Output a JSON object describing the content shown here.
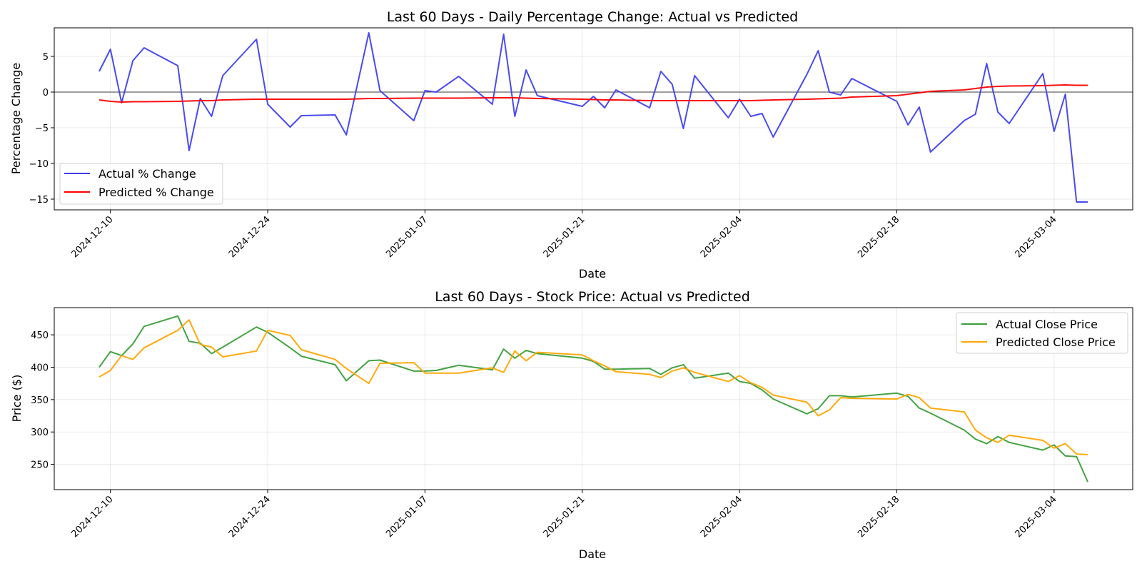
{
  "chart_data": [
    {
      "type": "line",
      "title": "Last 60 Days - Daily Percentage Change: Actual vs Predicted",
      "xlabel": "Date",
      "ylabel": "Percentage Change",
      "xlim": [
        "2024-12-05",
        "2025-03-11"
      ],
      "ylim": [
        -16.5,
        9.0
      ],
      "xticks": [
        "2024-12-10",
        "2024-12-24",
        "2025-01-07",
        "2025-01-21",
        "2025-02-04",
        "2025-02-18",
        "2025-03-04"
      ],
      "yticks": [
        -15,
        -10,
        -5,
        0,
        5
      ],
      "yticklabels": [
        "−15",
        "−10",
        "−5",
        "0",
        "5"
      ],
      "zero_line": true,
      "grid": true,
      "legend": "lower-left",
      "x": [
        "2024-12-09",
        "2024-12-10",
        "2024-12-11",
        "2024-12-12",
        "2024-12-13",
        "2024-12-16",
        "2024-12-17",
        "2024-12-18",
        "2024-12-19",
        "2024-12-20",
        "2024-12-23",
        "2024-12-24",
        "2024-12-26",
        "2024-12-27",
        "2024-12-30",
        "2024-12-31",
        "2025-01-02",
        "2025-01-03",
        "2025-01-06",
        "2025-01-07",
        "2025-01-08",
        "2025-01-10",
        "2025-01-13",
        "2025-01-14",
        "2025-01-15",
        "2025-01-16",
        "2025-01-17",
        "2025-01-21",
        "2025-01-22",
        "2025-01-23",
        "2025-01-24",
        "2025-01-27",
        "2025-01-28",
        "2025-01-29",
        "2025-01-30",
        "2025-01-31",
        "2025-02-03",
        "2025-02-04",
        "2025-02-05",
        "2025-02-06",
        "2025-02-07",
        "2025-02-10",
        "2025-02-11",
        "2025-02-12",
        "2025-02-13",
        "2025-02-14",
        "2025-02-18",
        "2025-02-19",
        "2025-02-20",
        "2025-02-21",
        "2025-02-24",
        "2025-02-25",
        "2025-02-26",
        "2025-02-27",
        "2025-02-28",
        "2025-03-03",
        "2025-03-04",
        "2025-03-05",
        "2025-03-06",
        "2025-03-07"
      ],
      "series": [
        {
          "name": "Actual % Change",
          "color": "#4040f0",
          "values": [
            2.9,
            6.0,
            -1.5,
            4.4,
            6.2,
            3.7,
            -8.2,
            -0.9,
            -3.4,
            2.3,
            7.4,
            -1.7,
            -4.9,
            -3.3,
            -3.2,
            -6.0,
            8.3,
            0.2,
            -4.0,
            0.2,
            0.0,
            2.2,
            -1.7,
            8.1,
            -3.4,
            3.1,
            -0.5,
            -2.0,
            -0.6,
            -2.2,
            0.3,
            -2.2,
            2.9,
            1.1,
            -5.1,
            2.3,
            -3.6,
            -1.0,
            -3.4,
            -3.0,
            -6.3,
            2.5,
            5.8,
            0.0,
            -0.4,
            1.9,
            -1.3,
            -4.6,
            -2.1,
            -8.4,
            -4.0,
            -3.1,
            4.0,
            -2.8,
            -4.4,
            2.6,
            -5.5,
            -0.3,
            -15.4,
            -15.4
          ]
        },
        {
          "name": "Predicted % Change",
          "color": "#ff0000",
          "values": [
            -1.1,
            -1.3,
            -1.4,
            -1.35,
            -1.35,
            -1.3,
            -1.25,
            -1.2,
            -1.2,
            -1.1,
            -1.0,
            -1.0,
            -1.0,
            -1.0,
            -1.0,
            -1.0,
            -0.9,
            -0.9,
            -0.85,
            -0.85,
            -0.85,
            -0.85,
            -0.8,
            -0.8,
            -0.8,
            -0.85,
            -0.9,
            -1.0,
            -1.05,
            -1.1,
            -1.1,
            -1.2,
            -1.2,
            -1.2,
            -1.2,
            -1.2,
            -1.2,
            -1.2,
            -1.2,
            -1.15,
            -1.1,
            -1.0,
            -0.95,
            -0.9,
            -0.85,
            -0.7,
            -0.5,
            -0.3,
            -0.1,
            0.1,
            0.3,
            0.5,
            0.7,
            0.8,
            0.85,
            0.9,
            0.95,
            1.0,
            0.95,
            0.95
          ]
        }
      ]
    },
    {
      "type": "line",
      "title": "Last 60 Days - Stock Price: Actual vs Predicted",
      "xlabel": "Date",
      "ylabel": "Price ($)",
      "xlim": [
        "2024-12-05",
        "2025-03-11"
      ],
      "ylim": [
        211,
        492
      ],
      "xticks": [
        "2024-12-10",
        "2024-12-24",
        "2025-01-07",
        "2025-01-21",
        "2025-02-04",
        "2025-02-18",
        "2025-03-04"
      ],
      "yticks": [
        250,
        300,
        350,
        400,
        450
      ],
      "yticklabels": [
        "250",
        "300",
        "350",
        "400",
        "450"
      ],
      "zero_line": false,
      "grid": true,
      "legend": "upper-right",
      "x": [
        "2024-12-09",
        "2024-12-10",
        "2024-12-11",
        "2024-12-12",
        "2024-12-13",
        "2024-12-16",
        "2024-12-17",
        "2024-12-18",
        "2024-12-19",
        "2024-12-20",
        "2024-12-23",
        "2024-12-24",
        "2024-12-26",
        "2024-12-27",
        "2024-12-30",
        "2024-12-31",
        "2025-01-02",
        "2025-01-03",
        "2025-01-06",
        "2025-01-07",
        "2025-01-08",
        "2025-01-10",
        "2025-01-13",
        "2025-01-14",
        "2025-01-15",
        "2025-01-16",
        "2025-01-17",
        "2025-01-21",
        "2025-01-22",
        "2025-01-23",
        "2025-01-24",
        "2025-01-27",
        "2025-01-28",
        "2025-01-29",
        "2025-01-30",
        "2025-01-31",
        "2025-02-03",
        "2025-02-04",
        "2025-02-05",
        "2025-02-06",
        "2025-02-07",
        "2025-02-10",
        "2025-02-11",
        "2025-02-12",
        "2025-02-13",
        "2025-02-14",
        "2025-02-18",
        "2025-02-19",
        "2025-02-20",
        "2025-02-21",
        "2025-02-24",
        "2025-02-25",
        "2025-02-26",
        "2025-02-27",
        "2025-02-28",
        "2025-03-03",
        "2025-03-04",
        "2025-03-05",
        "2025-03-06",
        "2025-03-07"
      ],
      "series": [
        {
          "name": "Actual Close Price",
          "color": "#3a9e3a",
          "values": [
            400,
            424,
            418,
            436,
            463,
            479,
            440,
            437,
            421,
            431,
            462,
            454,
            430,
            417,
            404,
            379,
            410,
            411,
            394,
            394,
            395,
            403,
            396,
            428,
            414,
            426,
            421,
            414,
            409,
            397,
            397,
            398,
            389,
            399,
            404,
            383,
            391,
            378,
            375,
            365,
            351,
            328,
            336,
            356,
            356,
            354,
            360,
            355,
            337,
            329,
            303,
            289,
            282,
            293,
            284,
            272,
            280,
            263,
            262,
            223
          ]
        },
        {
          "name": "Predicted Close Price",
          "color": "#ffa500",
          "values": [
            385,
            395,
            418,
            412,
            430,
            457,
            473,
            435,
            431,
            416,
            425,
            457,
            449,
            427,
            412,
            398,
            375,
            406,
            407,
            391,
            391,
            391,
            399,
            392,
            425,
            410,
            423,
            419,
            410,
            402,
            393,
            389,
            384,
            394,
            399,
            392,
            378,
            387,
            376,
            369,
            357,
            346,
            325,
            334,
            353,
            352,
            351,
            358,
            353,
            337,
            331,
            303,
            291,
            284,
            295,
            287,
            275,
            282,
            266,
            265
          ]
        }
      ]
    }
  ]
}
